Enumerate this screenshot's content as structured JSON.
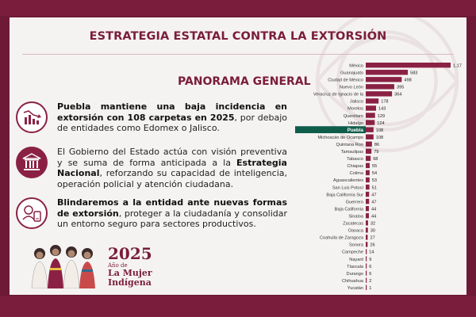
{
  "slide": {
    "title": "ESTRATEGIA ESTATAL CONTRA LA EXTORSIÓN",
    "subtitle": "PANORAMA GENERAL"
  },
  "points": [
    {
      "icon": "bar-chart-decline-icon",
      "bold": "Puebla mantiene una baja incidencia en extorsión con 108 carpetas en 2025",
      "rest": ", por debajo de entidades como Edomex o Jalisco."
    },
    {
      "icon": "government-building-icon",
      "pre": "El Gobierno del Estado actúa con visión preventiva y se suma de forma anticipada a la ",
      "bold": "Estrategia Nacional",
      "rest": ", reforzando su capacidad de inteligencia, operación policial y atención ciudadana."
    },
    {
      "icon": "phone-headset-icon",
      "bold": "Blindaremos a la entidad ante nuevas formas de extorsión",
      "rest": ", proteger a la ciudadanía y consolidar un entorno seguro para sectores productivos."
    }
  ],
  "brand": {
    "year": "2025",
    "sub": "Año de",
    "line1": "La Mujer",
    "line2": "Indígena"
  },
  "colors": {
    "bar": "#8a2145",
    "highlight": "#0f5c4a",
    "frame": "#7a1d3c"
  },
  "chart_data": {
    "type": "bar",
    "orientation": "horizontal",
    "highlight": "Puebla",
    "categories": [
      "México",
      "Guanajuato",
      "Ciudad de México",
      "Nuevo León",
      "Veracruz de Ignacio de la",
      "Jalisco",
      "Morelos",
      "Querétaro",
      "Hidalgo",
      "Puebla",
      "Michoacán de Ocampo",
      "Quintana Roo",
      "Tamaulipas",
      "Tabasco",
      "Chiapas",
      "Colima",
      "Aguascalientes",
      "San Luis Potosí",
      "Baja California Sur",
      "Guerrero",
      "Baja California",
      "Sinaloa",
      "Zacatecas",
      "Oaxaca",
      "Coahuila de Zaragoza",
      "Sonora",
      "Campeche",
      "Nayarit",
      "Tlaxcala",
      "Durango",
      "Chihuahua",
      "Yucatán"
    ],
    "values": [
      1175,
      583,
      498,
      395,
      364,
      178,
      143,
      129,
      124,
      108,
      108,
      86,
      79,
      68,
      55,
      54,
      53,
      51,
      47,
      47,
      44,
      44,
      32,
      30,
      27,
      26,
      14,
      9,
      6,
      6,
      2,
      1
    ],
    "value_labels": [
      "1,175",
      "583",
      "498",
      "395",
      "364",
      "178",
      "143",
      "129",
      "124",
      "108",
      "108",
      "86",
      "79",
      "68",
      "55",
      "54",
      "53",
      "51",
      "47",
      "47",
      "44",
      "44",
      "32",
      "30",
      "27",
      "26",
      "14",
      "9",
      "6",
      "6",
      "2",
      "1"
    ]
  }
}
